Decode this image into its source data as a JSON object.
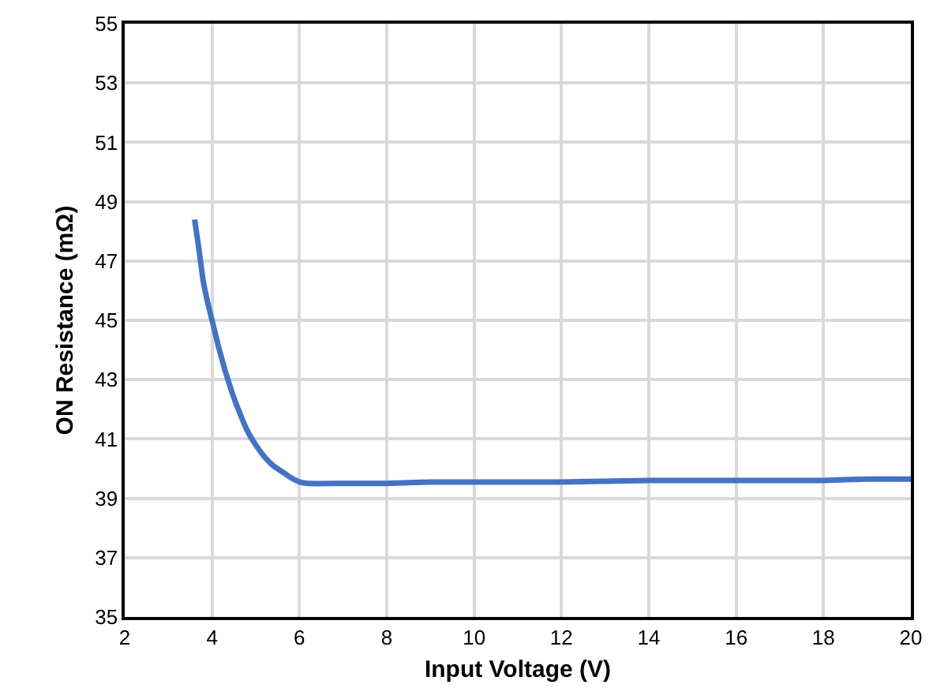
{
  "chart_data": {
    "type": "line",
    "xlabel": "Input Voltage (V)",
    "ylabel": "ON Resistance (mΩ)",
    "x": [
      3.6,
      3.7,
      3.8,
      3.9,
      4.0,
      4.15,
      4.3,
      4.45,
      4.6,
      4.8,
      5.0,
      5.2,
      5.4,
      5.6,
      5.8,
      6.0,
      6.2,
      7,
      8,
      9,
      10,
      12,
      14,
      16,
      18,
      19,
      20
    ],
    "series": [
      {
        "color": "#4472c4",
        "values": [
          48.4,
          47.4,
          46.3,
          45.6,
          45.0,
          44.1,
          43.3,
          42.6,
          42.0,
          41.3,
          40.8,
          40.4,
          40.1,
          39.9,
          39.7,
          39.55,
          39.5,
          39.5,
          39.5,
          39.55,
          39.55,
          39.55,
          39.6,
          39.6,
          39.6,
          39.65,
          39.65
        ]
      }
    ],
    "xlim": [
      2,
      20
    ],
    "xticks": [
      2,
      4,
      6,
      8,
      10,
      12,
      14,
      16,
      18,
      20
    ],
    "ylim": [
      35,
      55
    ],
    "yticks": [
      35,
      37,
      39,
      41,
      43,
      45,
      47,
      49,
      51,
      53,
      55
    ],
    "grid": true,
    "marker": "none",
    "line_style": "solid"
  }
}
